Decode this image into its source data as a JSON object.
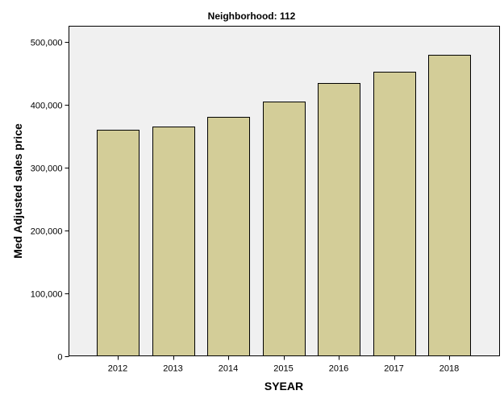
{
  "chart_data": {
    "type": "bar",
    "title": "Neighborhood: 112",
    "xlabel": "SYEAR",
    "ylabel": "Med Adjusted sales price",
    "categories": [
      "2012",
      "2013",
      "2014",
      "2015",
      "2016",
      "2017",
      "2018"
    ],
    "values": [
      360000,
      365000,
      380000,
      405000,
      435000,
      452000,
      480000
    ],
    "ylim": [
      0,
      500000
    ],
    "yticks": [
      0,
      100000,
      200000,
      300000,
      400000,
      500000
    ],
    "ytick_labels": [
      "0",
      "100,000",
      "200,000",
      "300,000",
      "400,000",
      "500,000"
    ],
    "grid": false,
    "legend": false,
    "colors": {
      "bar_fill": "#d3cd98",
      "plot_background": "#f0f0f0"
    }
  }
}
